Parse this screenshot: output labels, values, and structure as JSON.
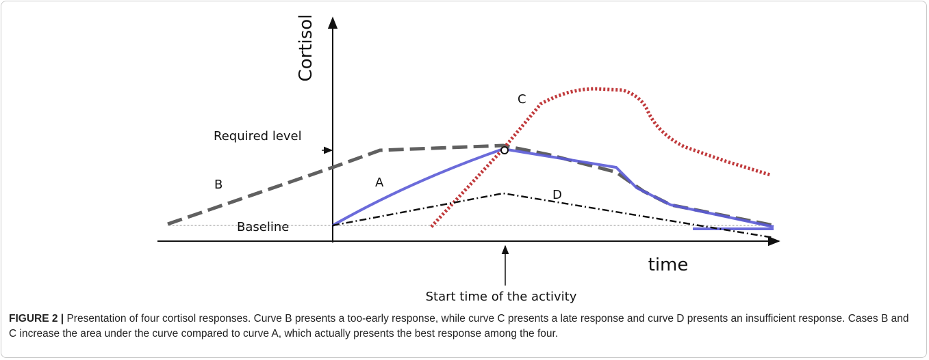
{
  "figure": {
    "axis_y": "Cortisol",
    "axis_x": "time",
    "required_level": "Required level",
    "baseline": "Baseline",
    "start_time": "Start time of the activity",
    "curve_labels": [
      "A",
      "B",
      "C",
      "D"
    ]
  },
  "caption": {
    "label": "FIGURE 2 |",
    "text": "Presentation of four cortisol responses. Curve B presents a too-early response, while curve C presents a late response and curve D presents an insufficient response. Cases B and C increase the area under the curve compared to curve A, which actually presents the best response among the four."
  }
}
